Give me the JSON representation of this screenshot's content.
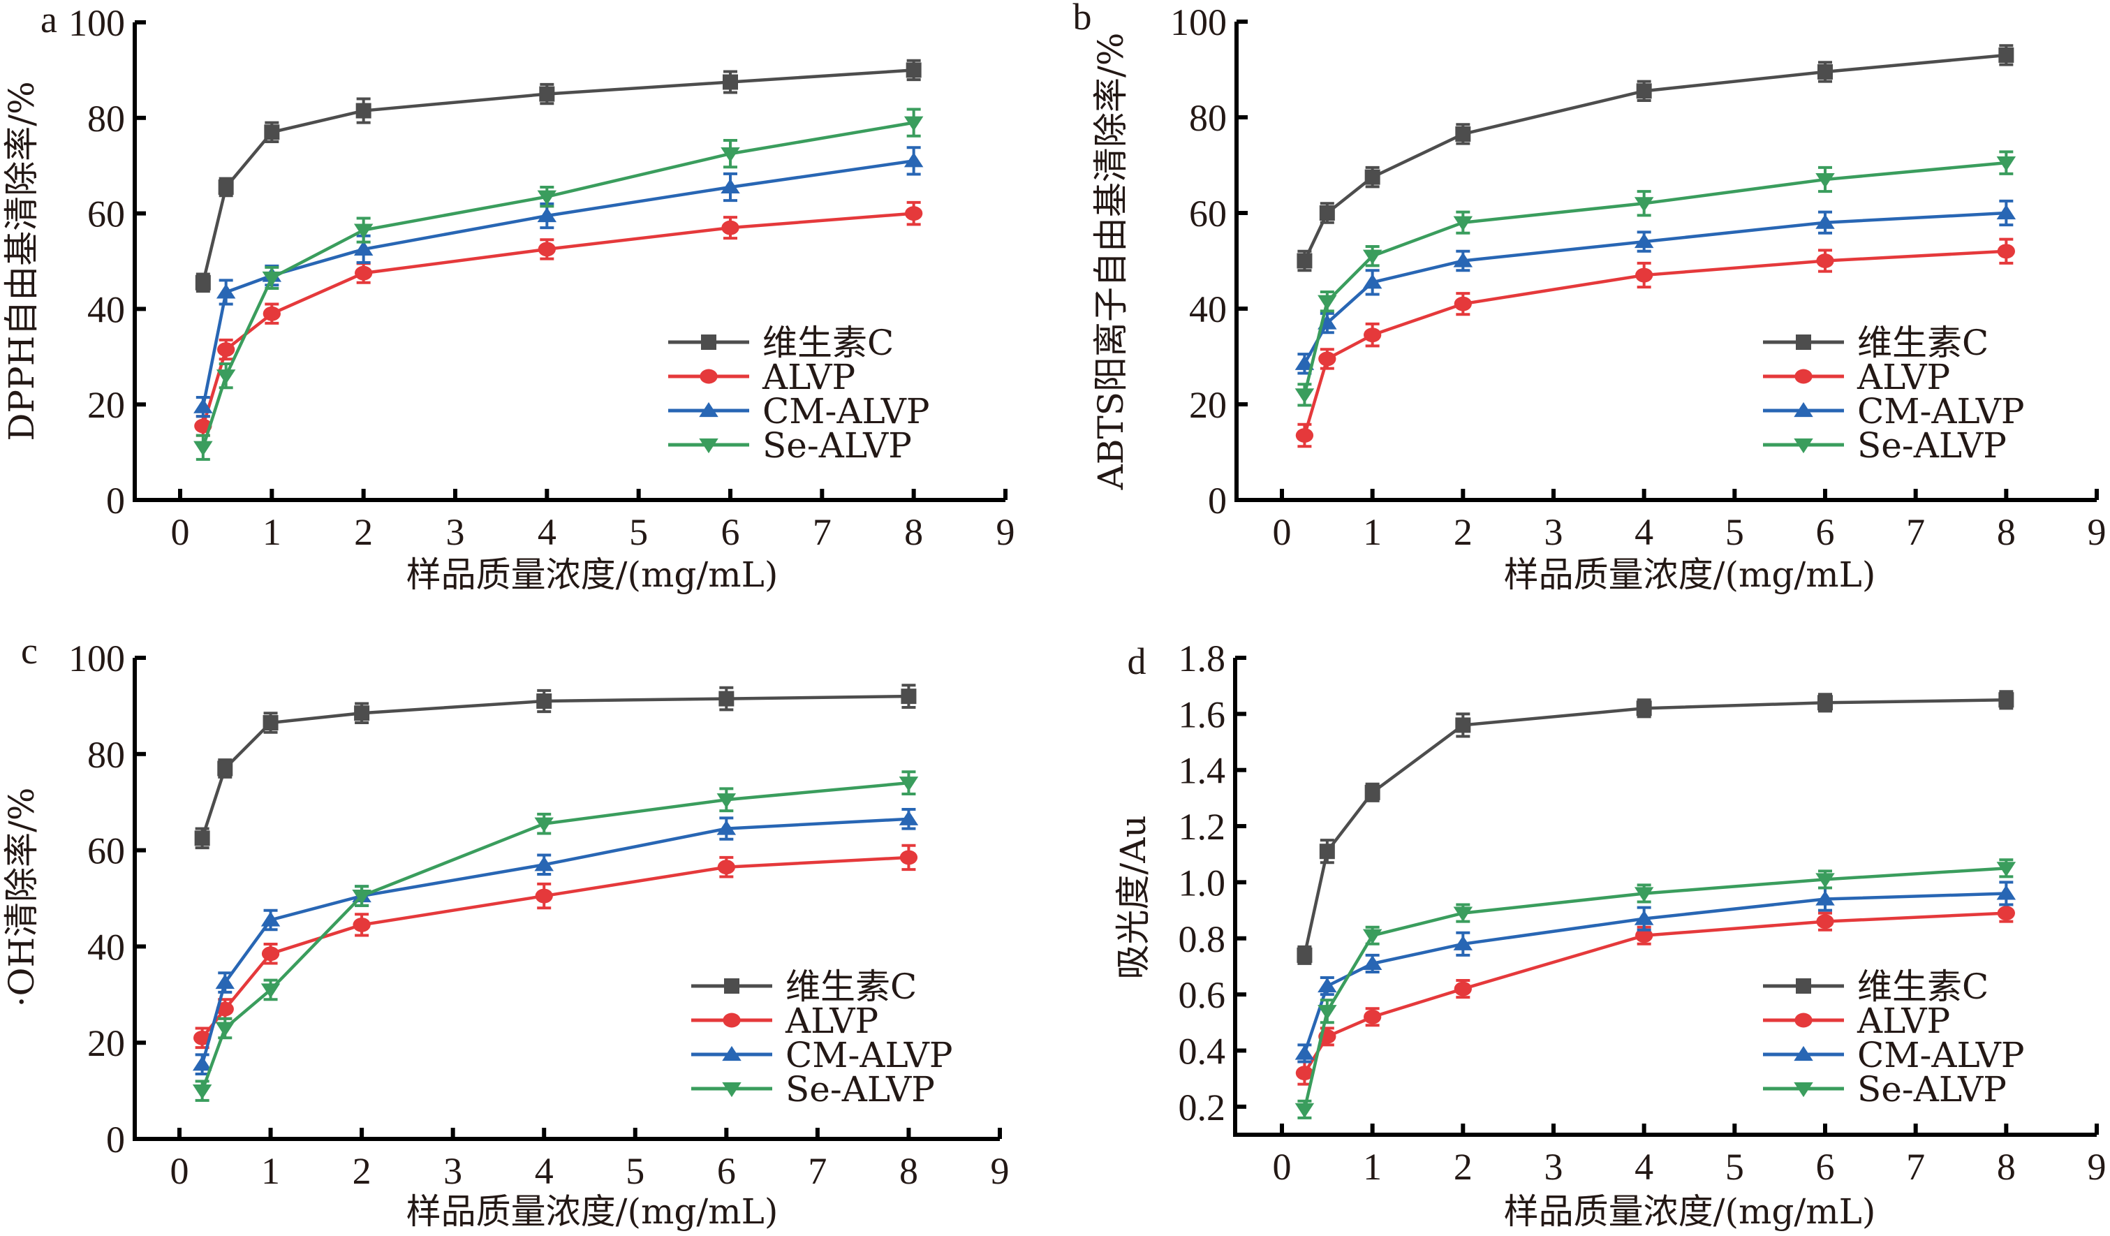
{
  "figure": {
    "legend_entries": [
      "维生素C",
      "ALVP",
      "CM-ALVP",
      "Se-ALVP"
    ]
  },
  "chart_data": [
    {
      "panel": "a",
      "type": "line",
      "title": "",
      "xlabel": "样品质量浓度/(mg/mL)",
      "ylabel": "DPPH自由基清除率/%",
      "xlim": [
        0,
        9
      ],
      "ylim": [
        0,
        100
      ],
      "xticks": [
        0,
        1,
        2,
        3,
        4,
        5,
        6,
        7,
        8,
        9
      ],
      "yticks": [
        0,
        20,
        40,
        60,
        80,
        100
      ],
      "ytick_labels": [
        "0",
        "20",
        "40",
        "60",
        "80",
        "100"
      ],
      "grid": false,
      "legend_position": "lower-right",
      "x": [
        0.25,
        0.5,
        1,
        2,
        4,
        6,
        8
      ],
      "series": [
        {
          "name": "维生素C",
          "color": "#4d4d4d",
          "marker": "square",
          "values": [
            45.5,
            65.5,
            77,
            81.5,
            85,
            87.5,
            90
          ],
          "errors": [
            1.8,
            1.8,
            2,
            2.5,
            2,
            2.2,
            2
          ]
        },
        {
          "name": "ALVP",
          "color": "#e5393b",
          "marker": "circle",
          "values": [
            15.5,
            31.5,
            39,
            47.5,
            52.5,
            57,
            60
          ],
          "errors": [
            2,
            2,
            2,
            2,
            2,
            2.2,
            2.3
          ]
        },
        {
          "name": "CM-ALVP",
          "color": "#2866b4",
          "marker": "triangle-up",
          "values": [
            19.5,
            43.5,
            47,
            52.5,
            59.5,
            65.5,
            71
          ],
          "errors": [
            2,
            2.5,
            2,
            2.8,
            2.5,
            2.8,
            2.8
          ]
        },
        {
          "name": "Se-ALVP",
          "color": "#3a9d5d",
          "marker": "triangle-down",
          "values": [
            11,
            26,
            46.5,
            56.5,
            63.5,
            72.5,
            79
          ],
          "errors": [
            2.5,
            2.5,
            2.2,
            2.5,
            2,
            2.8,
            2.8
          ]
        }
      ]
    },
    {
      "panel": "b",
      "type": "line",
      "title": "",
      "xlabel": "样品质量浓度/(mg/mL)",
      "ylabel": "ABTS阳离子自由基清除率/%",
      "xlim": [
        0,
        9
      ],
      "ylim": [
        0,
        100
      ],
      "xticks": [
        0,
        1,
        2,
        3,
        4,
        5,
        6,
        7,
        8,
        9
      ],
      "yticks": [
        0,
        20,
        40,
        60,
        80,
        100
      ],
      "ytick_labels": [
        "0",
        "20",
        "40",
        "60",
        "80",
        "100"
      ],
      "grid": false,
      "legend_position": "lower-right",
      "x": [
        0.25,
        0.5,
        1,
        2,
        4,
        6,
        8
      ],
      "series": [
        {
          "name": "维生素C",
          "color": "#4d4d4d",
          "marker": "square",
          "values": [
            50,
            60,
            67.5,
            76.5,
            85.5,
            89.5,
            93
          ],
          "errors": [
            2,
            2,
            2,
            2,
            2,
            2,
            2
          ]
        },
        {
          "name": "ALVP",
          "color": "#e5393b",
          "marker": "circle",
          "values": [
            13.5,
            29.5,
            34.5,
            41,
            47,
            50,
            52
          ],
          "errors": [
            2.3,
            2,
            2.3,
            2.2,
            2.5,
            2.2,
            2.5
          ]
        },
        {
          "name": "CM-ALVP",
          "color": "#2866b4",
          "marker": "triangle-up",
          "values": [
            28.5,
            37,
            45.5,
            50,
            54,
            58,
            60
          ],
          "errors": [
            2,
            2,
            2.5,
            2,
            2,
            2.2,
            2.5
          ]
        },
        {
          "name": "Se-ALVP",
          "color": "#3a9d5d",
          "marker": "triangle-down",
          "values": [
            22,
            41.5,
            51,
            58,
            62,
            67,
            70.5
          ],
          "errors": [
            2.2,
            2,
            2,
            2.2,
            2.5,
            2.5,
            2.3
          ]
        }
      ]
    },
    {
      "panel": "c",
      "type": "line",
      "title": "",
      "xlabel": "样品质量浓度/(mg/mL)",
      "ylabel": "·OH清除率/%",
      "xlim": [
        0,
        9
      ],
      "ylim": [
        0,
        100
      ],
      "xticks": [
        0,
        1,
        2,
        3,
        4,
        5,
        6,
        7,
        8,
        9
      ],
      "yticks": [
        0,
        20,
        40,
        60,
        80,
        100
      ],
      "ytick_labels": [
        "0",
        "20",
        "40",
        "60",
        "80",
        "100"
      ],
      "grid": false,
      "legend_position": "lower-right",
      "x": [
        0.25,
        0.5,
        1,
        2,
        4,
        6,
        8
      ],
      "series": [
        {
          "name": "维生素C",
          "color": "#4d4d4d",
          "marker": "square",
          "values": [
            62.5,
            77,
            86.5,
            88.5,
            91,
            91.5,
            92
          ],
          "errors": [
            2,
            1.8,
            2,
            2,
            2.2,
            2.3,
            2.3
          ]
        },
        {
          "name": "ALVP",
          "color": "#e5393b",
          "marker": "circle",
          "values": [
            21,
            27,
            38.5,
            44.5,
            50.5,
            56.5,
            58.5
          ],
          "errors": [
            2,
            2,
            2,
            2.2,
            2.5,
            2,
            2.5
          ]
        },
        {
          "name": "CM-ALVP",
          "color": "#2866b4",
          "marker": "triangle-up",
          "values": [
            15.5,
            32.5,
            45.5,
            50.5,
            57,
            64.5,
            66.5
          ],
          "errors": [
            2,
            2,
            2,
            2,
            2,
            2.2,
            2
          ]
        },
        {
          "name": "Se-ALVP",
          "color": "#3a9d5d",
          "marker": "triangle-down",
          "values": [
            10,
            23,
            31,
            50.5,
            65.5,
            70.5,
            74
          ],
          "errors": [
            2,
            2,
            2,
            2,
            2,
            2.3,
            2.3
          ]
        }
      ]
    },
    {
      "panel": "d",
      "type": "line",
      "title": "",
      "xlabel": "样品质量浓度/(mg/mL)",
      "ylabel": "吸光度/Au",
      "xlim": [
        0,
        9
      ],
      "ylim": [
        0.1,
        1.8
      ],
      "xticks": [
        0,
        1,
        2,
        3,
        4,
        5,
        6,
        7,
        8,
        9
      ],
      "yticks": [
        0.2,
        0.4,
        0.6,
        0.8,
        1.0,
        1.2,
        1.4,
        1.6,
        1.8
      ],
      "ytick_labels": [
        "0.2",
        "0.4",
        "0.6",
        "0.8",
        "1.0",
        "1.2",
        "1.4",
        "1.6",
        "1.8"
      ],
      "grid": false,
      "legend_position": "lower-right",
      "x": [
        0.25,
        0.5,
        1,
        2,
        4,
        6,
        8
      ],
      "series": [
        {
          "name": "维生素C",
          "color": "#4d4d4d",
          "marker": "square",
          "values": [
            0.74,
            1.11,
            1.32,
            1.56,
            1.62,
            1.64,
            1.65
          ],
          "errors": [
            0.03,
            0.04,
            0.03,
            0.04,
            0.03,
            0.03,
            0.03
          ]
        },
        {
          "name": "ALVP",
          "color": "#e5393b",
          "marker": "circle",
          "values": [
            0.32,
            0.45,
            0.52,
            0.62,
            0.81,
            0.86,
            0.89
          ],
          "errors": [
            0.04,
            0.03,
            0.03,
            0.03,
            0.03,
            0.03,
            0.03
          ]
        },
        {
          "name": "CM-ALVP",
          "color": "#2866b4",
          "marker": "triangle-up",
          "values": [
            0.39,
            0.63,
            0.71,
            0.78,
            0.87,
            0.94,
            0.96
          ],
          "errors": [
            0.03,
            0.03,
            0.03,
            0.04,
            0.04,
            0.04,
            0.04
          ]
        },
        {
          "name": "Se-ALVP",
          "color": "#3a9d5d",
          "marker": "triangle-down",
          "values": [
            0.19,
            0.54,
            0.81,
            0.89,
            0.96,
            1.01,
            1.05
          ],
          "errors": [
            0.03,
            0.04,
            0.03,
            0.03,
            0.03,
            0.03,
            0.03
          ]
        }
      ]
    }
  ]
}
